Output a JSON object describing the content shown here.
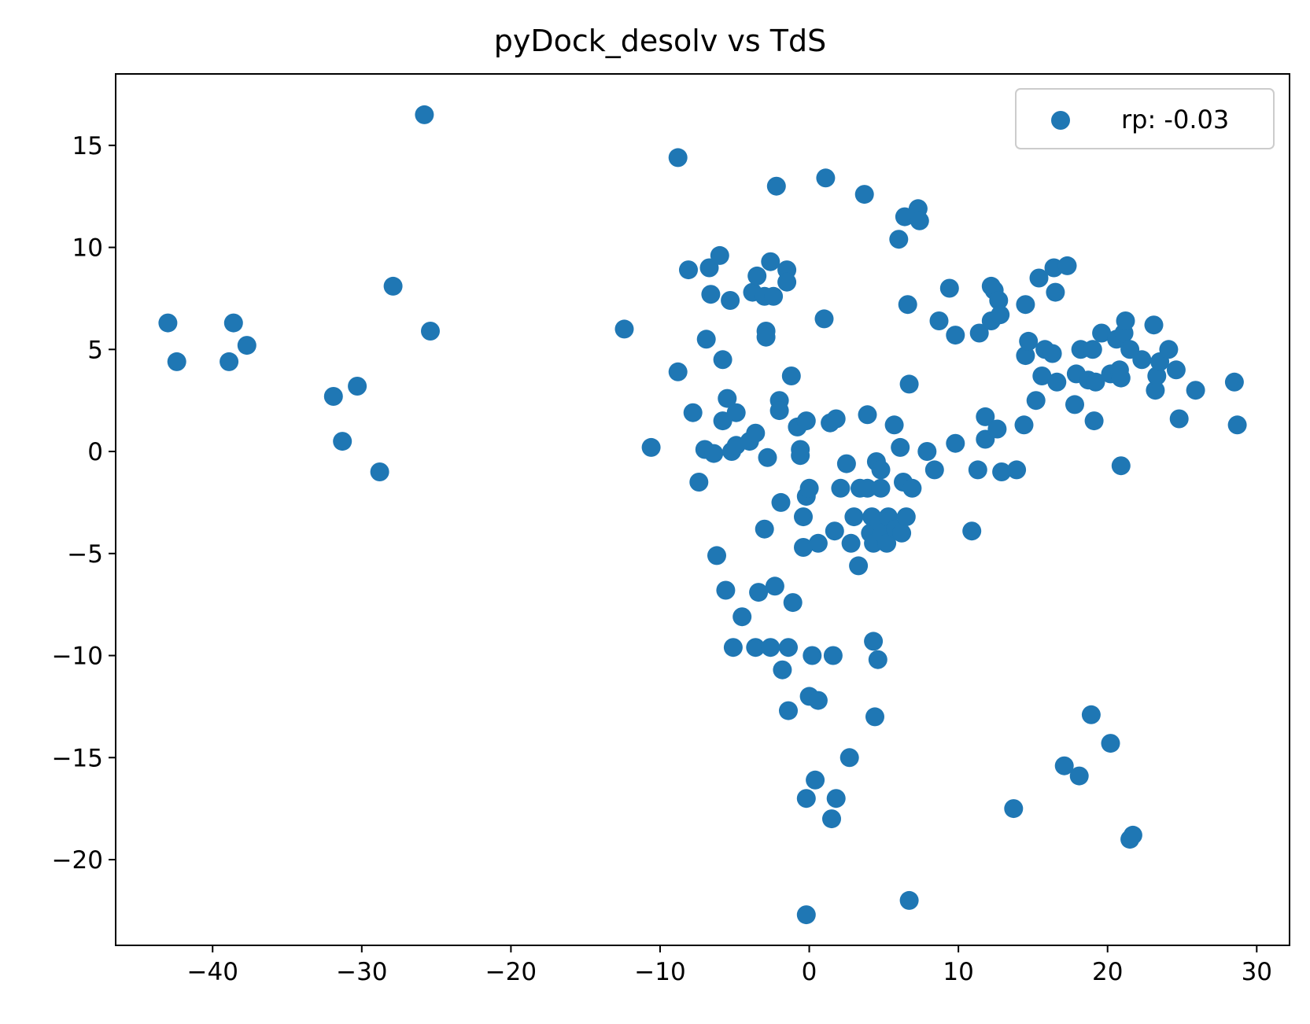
{
  "chart_data": {
    "type": "scatter",
    "title": "pyDock_desolv vs TdS",
    "xlabel": "",
    "ylabel": "",
    "xlim": [
      -46.5,
      32.2
    ],
    "ylim": [
      -24.2,
      18.5
    ],
    "xticks": [
      -40,
      -30,
      -20,
      -10,
      0,
      10,
      20,
      30
    ],
    "yticks": [
      15,
      10,
      5,
      0,
      -5,
      -10,
      -15,
      -20
    ],
    "xtick_labels": [
      "−40",
      "−30",
      "−20",
      "−10",
      "0",
      "10",
      "20",
      "30"
    ],
    "ytick_labels": [
      "15",
      "10",
      "5",
      "0",
      "−5",
      "−10",
      "−15",
      "−20"
    ],
    "grid": false,
    "legend": {
      "position": "upper right",
      "entries": [
        "rp: -0.03"
      ]
    },
    "color": "#1f77b4",
    "series": [
      {
        "name": "rp: -0.03",
        "points": [
          [
            -43.0,
            6.3
          ],
          [
            -42.4,
            4.4
          ],
          [
            -38.6,
            6.3
          ],
          [
            -38.9,
            4.4
          ],
          [
            -37.7,
            5.2
          ],
          [
            -31.9,
            2.7
          ],
          [
            -30.3,
            3.2
          ],
          [
            -31.3,
            0.5
          ],
          [
            -28.8,
            -1.0
          ],
          [
            -27.9,
            8.1
          ],
          [
            -25.8,
            16.5
          ],
          [
            -25.4,
            5.9
          ],
          [
            -12.4,
            6.0
          ],
          [
            -10.6,
            0.2
          ],
          [
            -8.8,
            14.4
          ],
          [
            -8.8,
            3.9
          ],
          [
            -8.1,
            8.9
          ],
          [
            -7.8,
            1.9
          ],
          [
            -7.4,
            -1.5
          ],
          [
            -7.0,
            0.1
          ],
          [
            -6.9,
            5.5
          ],
          [
            -6.7,
            9.0
          ],
          [
            -6.6,
            7.7
          ],
          [
            -6.4,
            -0.1
          ],
          [
            -6.2,
            -5.1
          ],
          [
            -6.0,
            9.6
          ],
          [
            -5.8,
            4.5
          ],
          [
            -5.8,
            1.5
          ],
          [
            -5.6,
            -6.8
          ],
          [
            -5.5,
            2.6
          ],
          [
            -5.3,
            7.4
          ],
          [
            -5.2,
            0.0
          ],
          [
            -5.1,
            -9.6
          ],
          [
            -4.9,
            0.3
          ],
          [
            -4.9,
            1.9
          ],
          [
            -4.5,
            -8.1
          ],
          [
            -4.0,
            0.5
          ],
          [
            -3.8,
            7.8
          ],
          [
            -3.6,
            0.9
          ],
          [
            -3.6,
            -9.6
          ],
          [
            -3.5,
            8.6
          ],
          [
            -3.4,
            -6.9
          ],
          [
            -3.0,
            -3.8
          ],
          [
            -3.0,
            7.6
          ],
          [
            -2.9,
            5.9
          ],
          [
            -2.9,
            5.6
          ],
          [
            -2.8,
            -0.3
          ],
          [
            -2.6,
            9.3
          ],
          [
            -2.6,
            -9.6
          ],
          [
            -2.4,
            7.6
          ],
          [
            -2.3,
            -6.6
          ],
          [
            -2.2,
            13.0
          ],
          [
            -2.0,
            2.5
          ],
          [
            -2.0,
            2.0
          ],
          [
            -1.9,
            -2.5
          ],
          [
            -1.8,
            -10.7
          ],
          [
            -1.5,
            8.9
          ],
          [
            -1.5,
            8.3
          ],
          [
            -1.4,
            -9.6
          ],
          [
            -1.4,
            -12.7
          ],
          [
            -1.2,
            3.7
          ],
          [
            -1.1,
            -7.4
          ],
          [
            -0.8,
            1.2
          ],
          [
            -0.6,
            0.1
          ],
          [
            -0.6,
            -0.2
          ],
          [
            -0.4,
            -3.2
          ],
          [
            -0.4,
            -4.7
          ],
          [
            -0.2,
            1.5
          ],
          [
            -0.2,
            -2.2
          ],
          [
            -0.2,
            -17.0
          ],
          [
            -0.2,
            -22.7
          ],
          [
            0.0,
            -1.8
          ],
          [
            0.0,
            -12.0
          ],
          [
            0.2,
            -10.0
          ],
          [
            0.4,
            -16.1
          ],
          [
            0.6,
            -12.2
          ],
          [
            0.6,
            -4.5
          ],
          [
            1.0,
            6.5
          ],
          [
            1.1,
            13.4
          ],
          [
            1.4,
            1.4
          ],
          [
            1.5,
            -18.0
          ],
          [
            1.6,
            -10.0
          ],
          [
            1.7,
            -3.9
          ],
          [
            1.8,
            -17.0
          ],
          [
            1.8,
            1.6
          ],
          [
            2.1,
            -1.8
          ],
          [
            2.5,
            -0.6
          ],
          [
            2.7,
            -15.0
          ],
          [
            2.8,
            -4.5
          ],
          [
            3.0,
            -3.2
          ],
          [
            3.3,
            -5.6
          ],
          [
            3.4,
            -1.8
          ],
          [
            3.7,
            12.6
          ],
          [
            3.9,
            1.8
          ],
          [
            3.9,
            -1.8
          ],
          [
            4.1,
            -4.0
          ],
          [
            4.2,
            -3.2
          ],
          [
            4.3,
            -4.5
          ],
          [
            4.3,
            -9.3
          ],
          [
            4.4,
            -13.0
          ],
          [
            4.5,
            -0.5
          ],
          [
            4.6,
            -10.2
          ],
          [
            4.7,
            -3.5
          ],
          [
            4.8,
            -1.8
          ],
          [
            4.8,
            -0.9
          ],
          [
            4.9,
            -4.0
          ],
          [
            5.2,
            -4.5
          ],
          [
            5.3,
            -3.2
          ],
          [
            5.7,
            1.3
          ],
          [
            5.8,
            -3.8
          ],
          [
            6.0,
            10.4
          ],
          [
            6.1,
            0.2
          ],
          [
            6.2,
            -4.0
          ],
          [
            6.3,
            -1.5
          ],
          [
            6.4,
            11.5
          ],
          [
            6.5,
            -3.2
          ],
          [
            6.6,
            7.2
          ],
          [
            6.7,
            3.3
          ],
          [
            6.9,
            -1.8
          ],
          [
            6.7,
            -22.0
          ],
          [
            7.3,
            11.9
          ],
          [
            7.4,
            11.3
          ],
          [
            7.9,
            0.0
          ],
          [
            8.4,
            -0.9
          ],
          [
            8.7,
            6.4
          ],
          [
            9.4,
            8.0
          ],
          [
            9.8,
            0.4
          ],
          [
            9.8,
            5.7
          ],
          [
            10.9,
            -3.9
          ],
          [
            11.3,
            -0.9
          ],
          [
            11.4,
            5.8
          ],
          [
            11.8,
            0.6
          ],
          [
            11.8,
            1.7
          ],
          [
            12.2,
            8.1
          ],
          [
            12.2,
            6.4
          ],
          [
            12.4,
            7.9
          ],
          [
            12.6,
            1.1
          ],
          [
            12.7,
            7.4
          ],
          [
            12.8,
            6.7
          ],
          [
            12.9,
            -1.0
          ],
          [
            13.7,
            -17.5
          ],
          [
            13.9,
            -0.9
          ],
          [
            14.4,
            1.3
          ],
          [
            14.5,
            7.2
          ],
          [
            14.5,
            4.7
          ],
          [
            14.7,
            5.4
          ],
          [
            15.2,
            2.5
          ],
          [
            15.4,
            8.5
          ],
          [
            15.6,
            3.7
          ],
          [
            15.8,
            5.0
          ],
          [
            16.3,
            4.8
          ],
          [
            16.4,
            9.0
          ],
          [
            16.5,
            7.8
          ],
          [
            16.6,
            3.4
          ],
          [
            17.1,
            -15.4
          ],
          [
            17.3,
            9.1
          ],
          [
            17.8,
            2.3
          ],
          [
            17.9,
            3.8
          ],
          [
            18.1,
            -15.9
          ],
          [
            18.2,
            5.0
          ],
          [
            18.7,
            3.5
          ],
          [
            18.9,
            -12.9
          ],
          [
            19.0,
            5.0
          ],
          [
            19.1,
            1.5
          ],
          [
            19.2,
            3.4
          ],
          [
            19.6,
            5.8
          ],
          [
            20.2,
            -14.3
          ],
          [
            20.2,
            3.8
          ],
          [
            20.6,
            5.5
          ],
          [
            20.8,
            4.0
          ],
          [
            20.9,
            -0.7
          ],
          [
            20.9,
            3.6
          ],
          [
            21.1,
            5.8
          ],
          [
            21.2,
            6.4
          ],
          [
            21.5,
            5.0
          ],
          [
            21.5,
            -19.0
          ],
          [
            21.7,
            -18.8
          ],
          [
            22.3,
            4.5
          ],
          [
            23.1,
            6.2
          ],
          [
            23.2,
            3.0
          ],
          [
            23.3,
            3.7
          ],
          [
            23.5,
            4.4
          ],
          [
            24.1,
            5.0
          ],
          [
            24.6,
            4.0
          ],
          [
            24.8,
            1.6
          ],
          [
            25.9,
            3.0
          ],
          [
            28.5,
            3.4
          ],
          [
            28.7,
            1.3
          ]
        ]
      }
    ]
  }
}
